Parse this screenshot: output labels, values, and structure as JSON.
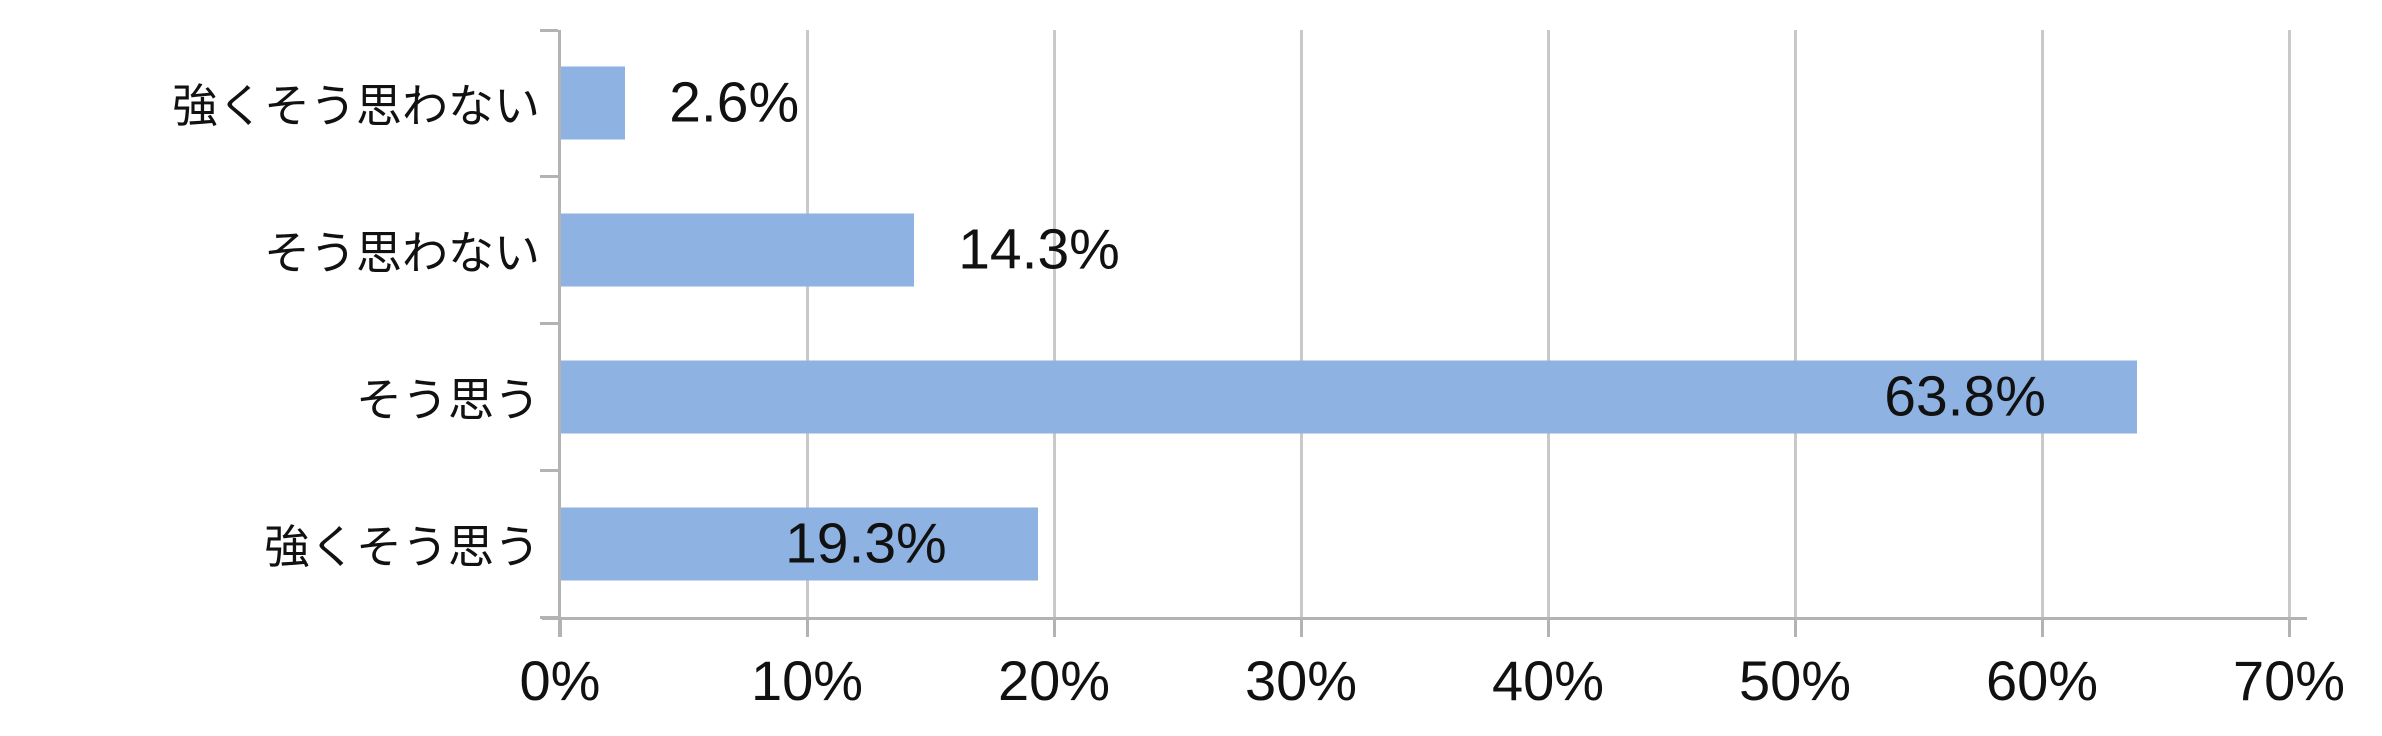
{
  "chart_data": {
    "type": "bar",
    "orientation": "horizontal",
    "title": "",
    "xlabel": "",
    "ylabel": "",
    "categories": [
      "強くそう思わない",
      "そう思わない",
      "そう思う",
      "強くそう思う"
    ],
    "values": [
      2.6,
      14.3,
      63.8,
      19.3
    ],
    "value_labels": [
      "2.6%",
      "14.3%",
      "63.8%",
      "19.3%"
    ],
    "x_tick_labels": [
      "0%",
      "10%",
      "20%",
      "30%",
      "40%",
      "50%",
      "60%",
      "70%"
    ],
    "x_tick_values": [
      0,
      10,
      20,
      30,
      40,
      50,
      60,
      70
    ],
    "xlim": [
      0,
      70
    ],
    "grid": true,
    "legend": false,
    "label_position_rule": "inside-end if value >= 18 else outside-end",
    "colors": {
      "bar_fill": "#8EB2E2",
      "axis_line": "#B3B3B3",
      "gridline": "#C9C9C9",
      "text": "#111111",
      "background": "#FFFFFF"
    }
  }
}
